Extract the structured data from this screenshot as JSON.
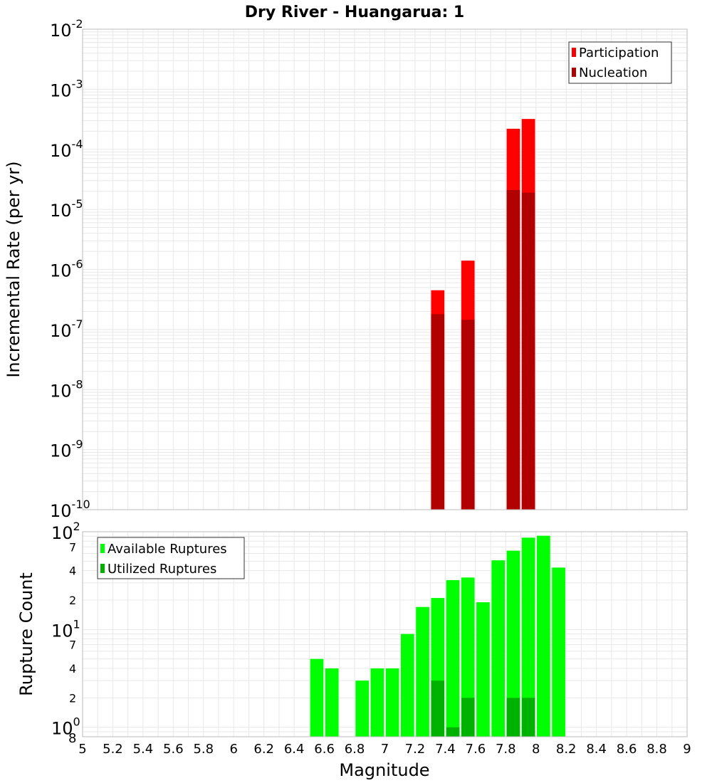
{
  "title": "Dry River - Huangarua: 1",
  "colors": {
    "participation": "#ff0000",
    "nucleation": "#b20000",
    "available": "#00ff00",
    "utilized": "#00b200",
    "grid": "#e8e8e8",
    "frame": "#bbbbbb"
  },
  "chart_data": [
    {
      "type": "bar",
      "ylabel": "Incremental Rate (per yr)",
      "yscale": "log",
      "ylim": [
        1e-10,
        0.01
      ],
      "xlim": [
        5,
        9
      ],
      "grid": true,
      "legend_position": "top-right",
      "y_tick_labels": [
        {
          "base": "10",
          "exp": "-10"
        },
        {
          "base": "10",
          "exp": "-9"
        },
        {
          "base": "10",
          "exp": "-8"
        },
        {
          "base": "10",
          "exp": "-7"
        },
        {
          "base": "10",
          "exp": "-6"
        },
        {
          "base": "10",
          "exp": "-5"
        },
        {
          "base": "10",
          "exp": "-4"
        },
        {
          "base": "10",
          "exp": "-3"
        },
        {
          "base": "10",
          "exp": "-2"
        }
      ],
      "series": [
        {
          "name": "Participation",
          "x": [
            7.35,
            7.55,
            7.85,
            7.95
          ],
          "values": [
            4.5e-07,
            1.4e-06,
            0.00022,
            0.00032
          ]
        },
        {
          "name": "Nucleation",
          "x": [
            7.35,
            7.55,
            7.85,
            7.95
          ],
          "values": [
            1.8e-07,
            1.45e-07,
            2.1e-05,
            1.9e-05
          ]
        }
      ]
    },
    {
      "type": "bar",
      "ylabel": "Rupture Count",
      "xlabel": "Magnitude",
      "yscale": "log",
      "ylim": [
        0.8,
        100
      ],
      "xlim": [
        5,
        9
      ],
      "grid": true,
      "legend_position": "top-left",
      "x_tick_labels": [
        "5",
        "5.2",
        "5.4",
        "5.6",
        "5.8",
        "6",
        "6.2",
        "6.4",
        "6.6",
        "6.8",
        "7",
        "7.2",
        "7.4",
        "7.6",
        "7.8",
        "8",
        "8.2",
        "8.4",
        "8.6",
        "8.8",
        "9"
      ],
      "y_major_tick_labels": [
        {
          "value": 1,
          "base": "10",
          "exp": "0"
        },
        {
          "value": 10,
          "base": "10",
          "exp": "1"
        },
        {
          "value": 100,
          "base": "10",
          "exp": "2"
        }
      ],
      "y_minor_tick_labels": [
        {
          "value": 0.8,
          "label": "8"
        },
        {
          "value": 2,
          "label": "2"
        },
        {
          "value": 4,
          "label": "4"
        },
        {
          "value": 7,
          "label": "7"
        },
        {
          "value": 20,
          "label": "2"
        },
        {
          "value": 40,
          "label": "4"
        },
        {
          "value": 70,
          "label": "7"
        }
      ],
      "series": [
        {
          "name": "Available Ruptures",
          "x": [
            6.55,
            6.65,
            6.85,
            6.95,
            7.05,
            7.15,
            7.25,
            7.35,
            7.45,
            7.55,
            7.65,
            7.75,
            7.85,
            7.95,
            8.05,
            8.15
          ],
          "values": [
            5,
            4,
            3,
            4,
            4,
            9,
            17,
            21,
            32,
            34,
            19,
            51,
            64,
            87,
            91,
            43
          ]
        },
        {
          "name": "Utilized Ruptures",
          "x": [
            7.35,
            7.45,
            7.55,
            7.85,
            7.95
          ],
          "values": [
            3,
            1,
            2,
            2,
            2
          ]
        }
      ]
    }
  ]
}
